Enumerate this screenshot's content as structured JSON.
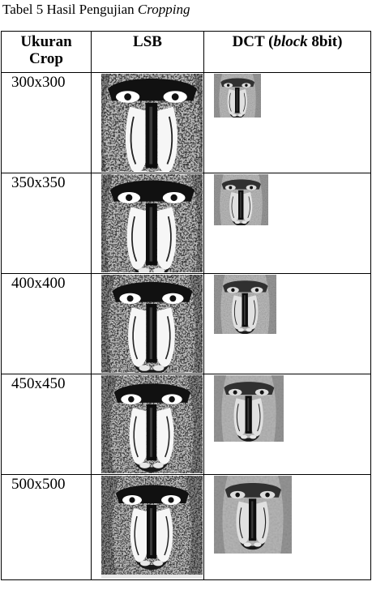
{
  "caption": {
    "prefix": "Tabel 5 Hasil Pengujian ",
    "emphasis": "Cropping"
  },
  "table": {
    "headers": {
      "col1_line1": "Ukuran",
      "col1_line2": "Crop",
      "col2": "LSB",
      "col3_pre": "DCT (",
      "col3_italic": "block",
      "col3_post": " 8bit)"
    },
    "rows": [
      {
        "size": "300x300",
        "lsb_fraction": 0.6,
        "dct_fraction": 0.6
      },
      {
        "size": "350x350",
        "lsb_fraction": 0.7,
        "dct_fraction": 0.7
      },
      {
        "size": "400x400",
        "lsb_fraction": 0.8,
        "dct_fraction": 0.8
      },
      {
        "size": "450x450",
        "lsb_fraction": 0.9,
        "dct_fraction": 0.9
      },
      {
        "size": "500x500",
        "lsb_fraction": 1.0,
        "dct_fraction": 1.0
      }
    ]
  }
}
